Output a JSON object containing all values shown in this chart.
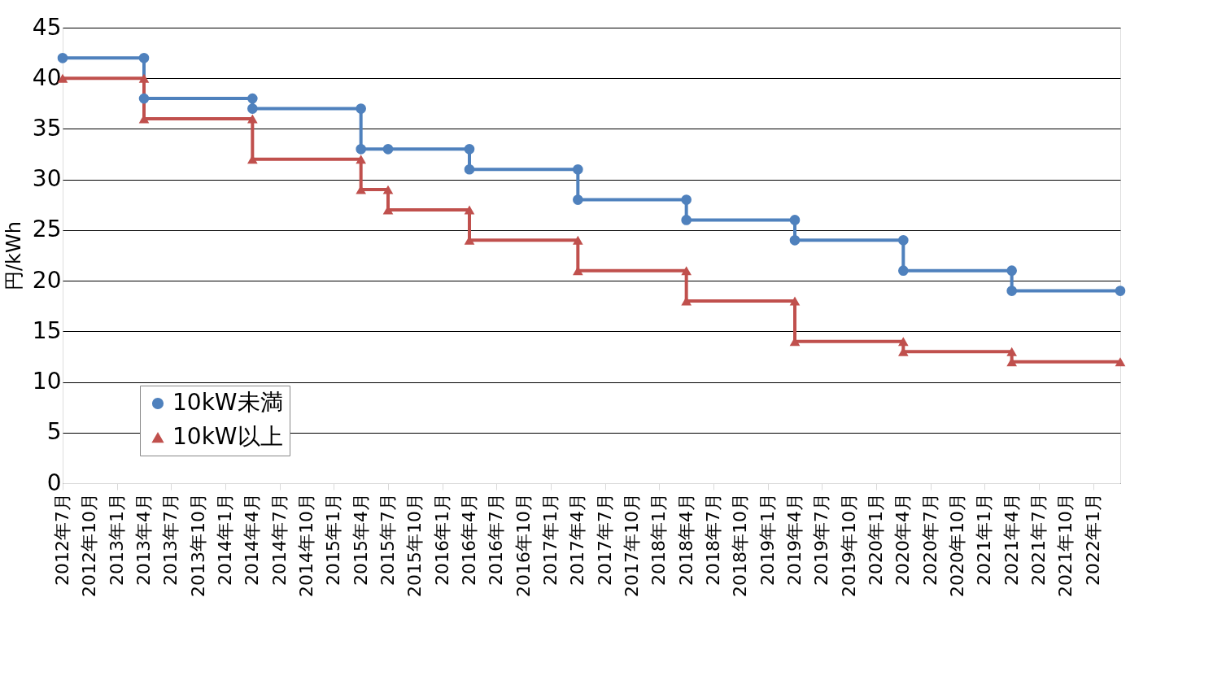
{
  "chart_data": {
    "type": "line",
    "ylabel": "円/kWh",
    "ylim": [
      0,
      45
    ],
    "yticks": [
      0,
      5,
      10,
      15,
      20,
      25,
      30,
      35,
      40,
      45
    ],
    "grid": "y",
    "legend": "bottom left",
    "xlim": [
      "2012-07",
      "2022-04"
    ],
    "xticks": [
      {
        "value": "2012-07",
        "label": "2012年7月"
      },
      {
        "value": "2012-10",
        "label": "2012年10月"
      },
      {
        "value": "2013-01",
        "label": "2013年1月"
      },
      {
        "value": "2013-04",
        "label": "2013年4月"
      },
      {
        "value": "2013-07",
        "label": "2013年7月"
      },
      {
        "value": "2013-10",
        "label": "2013年10月"
      },
      {
        "value": "2014-01",
        "label": "2014年1月"
      },
      {
        "value": "2014-04",
        "label": "2014年4月"
      },
      {
        "value": "2014-07",
        "label": "2014年7月"
      },
      {
        "value": "2014-10",
        "label": "2014年10月"
      },
      {
        "value": "2015-01",
        "label": "2015年1月"
      },
      {
        "value": "2015-04",
        "label": "2015年4月"
      },
      {
        "value": "2015-07",
        "label": "2015年7月"
      },
      {
        "value": "2015-10",
        "label": "2015年10月"
      },
      {
        "value": "2016-01",
        "label": "2016年1月"
      },
      {
        "value": "2016-04",
        "label": "2016年4月"
      },
      {
        "value": "2016-07",
        "label": "2016年7月"
      },
      {
        "value": "2016-10",
        "label": "2016年10月"
      },
      {
        "value": "2017-01",
        "label": "2017年1月"
      },
      {
        "value": "2017-04",
        "label": "2017年4月"
      },
      {
        "value": "2017-07",
        "label": "2017年7月"
      },
      {
        "value": "2017-10",
        "label": "2017年10月"
      },
      {
        "value": "2018-01",
        "label": "2018年1月"
      },
      {
        "value": "2018-04",
        "label": "2018年4月"
      },
      {
        "value": "2018-07",
        "label": "2018年7月"
      },
      {
        "value": "2018-10",
        "label": "2018年10月"
      },
      {
        "value": "2019-01",
        "label": "2019年1月"
      },
      {
        "value": "2019-04",
        "label": "2019年4月"
      },
      {
        "value": "2019-07",
        "label": "2019年7月"
      },
      {
        "value": "2019-10",
        "label": "2019年10月"
      },
      {
        "value": "2020-01",
        "label": "2020年1月"
      },
      {
        "value": "2020-04",
        "label": "2020年4月"
      },
      {
        "value": "2020-07",
        "label": "2020年7月"
      },
      {
        "value": "2020-10",
        "label": "2020年10月"
      },
      {
        "value": "2021-01",
        "label": "2021年1月"
      },
      {
        "value": "2021-04",
        "label": "2021年4月"
      },
      {
        "value": "2021-07",
        "label": "2021年7月"
      },
      {
        "value": "2021-10",
        "label": "2021年10月"
      },
      {
        "value": "2022-01",
        "label": "2022年1月"
      },
      {
        "value": "2022-04",
        "label": null
      }
    ],
    "series": [
      {
        "name": "10kW未満",
        "color": "#4f81bd",
        "marker": "circle",
        "x": [
          "2012-07",
          "2013-04",
          "2013-04",
          "2014-04",
          "2014-04",
          "2015-04",
          "2015-04",
          "2015-07",
          "2016-04",
          "2016-04",
          "2017-04",
          "2017-04",
          "2018-04",
          "2018-04",
          "2019-04",
          "2019-04",
          "2020-04",
          "2020-04",
          "2021-04",
          "2021-04",
          "2022-04"
        ],
        "values": [
          42,
          42,
          38,
          38,
          37,
          37,
          33,
          33,
          33,
          31,
          31,
          28,
          28,
          26,
          26,
          24,
          24,
          21,
          21,
          19,
          19
        ]
      },
      {
        "name": "10kW以上",
        "color": "#c0504d",
        "marker": "triangle",
        "x": [
          "2012-07",
          "2013-04",
          "2013-04",
          "2014-04",
          "2014-04",
          "2015-04",
          "2015-04",
          "2015-07",
          "2015-07",
          "2016-04",
          "2016-04",
          "2017-04",
          "2017-04",
          "2018-04",
          "2018-04",
          "2019-04",
          "2019-04",
          "2020-04",
          "2020-04",
          "2021-04",
          "2021-04",
          "2022-04"
        ],
        "values": [
          40,
          40,
          36,
          36,
          32,
          32,
          29,
          29,
          27,
          27,
          24,
          24,
          21,
          21,
          18,
          18,
          14,
          14,
          13,
          13,
          12,
          12
        ]
      }
    ]
  }
}
